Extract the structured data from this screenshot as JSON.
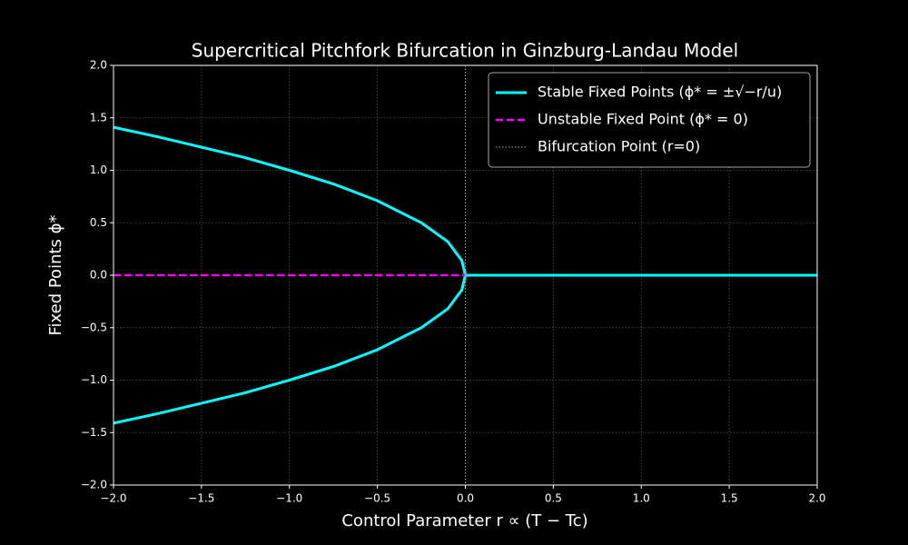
{
  "chart_data": {
    "type": "line",
    "title": "Supercritical Pitchfork Bifurcation in Ginzburg-Landau Model",
    "xlabel": "Control Parameter r ∝ (T − Tc)",
    "ylabel": "Fixed Points ϕ*",
    "x": [
      -2,
      -1.75,
      -1.5,
      -1.25,
      -1,
      -0.75,
      -0.5,
      -0.25,
      -0.1,
      -0.02,
      0,
      0.5,
      1,
      1.5,
      2
    ],
    "series": [
      {
        "name": "Stable Fixed Points (ϕ* = ±√−r/u)",
        "color": "#00ffff",
        "linestyle": "solid",
        "values": [
          1.41,
          1.32,
          1.22,
          1.12,
          1.0,
          0.87,
          0.71,
          0.5,
          0.32,
          0.14,
          0,
          0,
          0,
          0,
          0
        ]
      },
      {
        "color": "#00ffff",
        "linestyle": "solid",
        "values": [
          -1.41,
          -1.32,
          -1.22,
          -1.12,
          -1.0,
          -0.87,
          -0.71,
          -0.5,
          -0.32,
          -0.14,
          0,
          null,
          null,
          null,
          null
        ]
      },
      {
        "name": "Unstable Fixed Point (ϕ* = 0)",
        "color": "#ff00ff",
        "linestyle": "dashed",
        "values": [
          0,
          0,
          0,
          0,
          0,
          0,
          0,
          0,
          0,
          0,
          0,
          null,
          null,
          null,
          null
        ]
      }
    ],
    "reference_lines": [
      {
        "name": "Bifurcation Point (r=0)",
        "x": 0,
        "color": "#aaaaaa",
        "linestyle": "dotted"
      }
    ],
    "xlim": [
      -2,
      2
    ],
    "ylim": [
      -2,
      2
    ],
    "xticks": [
      {
        "value": -2,
        "label": "−2.0"
      },
      {
        "value": -1.5,
        "label": "−1.5"
      },
      {
        "value": -1,
        "label": "−1.0"
      },
      {
        "value": -0.5,
        "label": "−0.5"
      },
      {
        "value": 0,
        "label": "0.0"
      },
      0.5,
      {
        "value": 1,
        "label": "1.0"
      },
      1.5,
      {
        "value": 2,
        "label": "2.0"
      }
    ],
    "yticks": [
      {
        "value": -2,
        "label": "−2.0"
      },
      {
        "value": -1.5,
        "label": "−1.5"
      },
      {
        "value": -1,
        "label": "−1.0"
      },
      {
        "value": -0.5,
        "label": "−0.5"
      },
      {
        "value": 0,
        "label": "0.0"
      },
      0.5,
      {
        "value": 1,
        "label": "1.0"
      },
      1.5,
      {
        "value": 2,
        "label": "2.0"
      }
    ],
    "grid": true,
    "legend": "upper right"
  }
}
